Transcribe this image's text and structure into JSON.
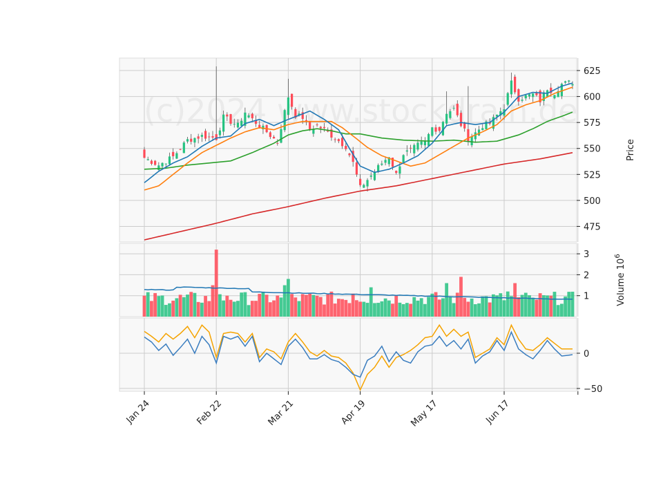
{
  "watermark": "(c)2024 www.stockdrain.de",
  "colors": {
    "up": "#26c281",
    "down": "#ff4a57",
    "ma_fast": "#1f77b4",
    "ma_mid": "#ff7f0e",
    "ma_slow": "#2ca02c",
    "ma_long": "#d62728",
    "vol_ma": "#1f77b4",
    "osc_a": "#3a7dbf",
    "osc_b": "#f5a300"
  },
  "chart_data": {
    "type": "candlestick",
    "x_tick_labels": [
      "Jan 24",
      "Feb 22",
      "Mar 21",
      "Apr 19",
      "May 17",
      "Jun 17"
    ],
    "x_tick_index": [
      0,
      20,
      40,
      60,
      80,
      100
    ],
    "n_bars": 120,
    "price_panel": {
      "ylabel": "Price",
      "ylim": [
        460,
        637
      ],
      "yticks": [
        475,
        500,
        525,
        550,
        575,
        600,
        625
      ],
      "close_anchors": [
        [
          0,
          541
        ],
        [
          4,
          534
        ],
        [
          8,
          542
        ],
        [
          12,
          558
        ],
        [
          16,
          562
        ],
        [
          20,
          560
        ],
        [
          22,
          580
        ],
        [
          26,
          572
        ],
        [
          28,
          585
        ],
        [
          30,
          578
        ],
        [
          34,
          566
        ],
        [
          37,
          556
        ],
        [
          40,
          600
        ],
        [
          42,
          582
        ],
        [
          44,
          580
        ],
        [
          46,
          568
        ],
        [
          48,
          572
        ],
        [
          50,
          568
        ],
        [
          53,
          560
        ],
        [
          56,
          552
        ],
        [
          58,
          536
        ],
        [
          60,
          512
        ],
        [
          62,
          520
        ],
        [
          65,
          532
        ],
        [
          68,
          543
        ],
        [
          70,
          525
        ],
        [
          72,
          545
        ],
        [
          74,
          548
        ],
        [
          76,
          553
        ],
        [
          78,
          556
        ],
        [
          80,
          570
        ],
        [
          82,
          568
        ],
        [
          84,
          585
        ],
        [
          86,
          588
        ],
        [
          88,
          573
        ],
        [
          90,
          560
        ],
        [
          92,
          565
        ],
        [
          94,
          572
        ],
        [
          96,
          574
        ],
        [
          98,
          582
        ],
        [
          100,
          590
        ],
        [
          102,
          613
        ],
        [
          104,
          598
        ],
        [
          106,
          600
        ],
        [
          108,
          602
        ],
        [
          110,
          596
        ],
        [
          112,
          608
        ],
        [
          114,
          604
        ],
        [
          116,
          612
        ],
        [
          119,
          614
        ]
      ],
      "ma_fast_anchors": [
        [
          0,
          517
        ],
        [
          4,
          528
        ],
        [
          8,
          536
        ],
        [
          12,
          542
        ],
        [
          16,
          552
        ],
        [
          20,
          560
        ],
        [
          24,
          562
        ],
        [
          28,
          574
        ],
        [
          32,
          578
        ],
        [
          36,
          572
        ],
        [
          40,
          578
        ],
        [
          46,
          586
        ],
        [
          50,
          578
        ],
        [
          54,
          568
        ],
        [
          57,
          550
        ],
        [
          60,
          533
        ],
        [
          64,
          527
        ],
        [
          68,
          530
        ],
        [
          72,
          536
        ],
        [
          76,
          543
        ],
        [
          80,
          555
        ],
        [
          84,
          572
        ],
        [
          88,
          575
        ],
        [
          92,
          573
        ],
        [
          96,
          575
        ],
        [
          100,
          585
        ],
        [
          104,
          600
        ],
        [
          108,
          604
        ],
        [
          112,
          603
        ],
        [
          116,
          610
        ],
        [
          119,
          613
        ]
      ],
      "ma_mid_anchors": [
        [
          0,
          510
        ],
        [
          4,
          514
        ],
        [
          8,
          525
        ],
        [
          12,
          536
        ],
        [
          16,
          546
        ],
        [
          20,
          553
        ],
        [
          24,
          560
        ],
        [
          28,
          566
        ],
        [
          32,
          570
        ],
        [
          36,
          568
        ],
        [
          40,
          573
        ],
        [
          44,
          576
        ],
        [
          48,
          576
        ],
        [
          52,
          576
        ],
        [
          55,
          570
        ],
        [
          58,
          562
        ],
        [
          62,
          551
        ],
        [
          66,
          543
        ],
        [
          70,
          538
        ],
        [
          74,
          533
        ],
        [
          78,
          536
        ],
        [
          82,
          544
        ],
        [
          86,
          552
        ],
        [
          90,
          560
        ],
        [
          94,
          566
        ],
        [
          98,
          573
        ],
        [
          102,
          586
        ],
        [
          106,
          592
        ],
        [
          110,
          596
        ],
        [
          114,
          603
        ],
        [
          119,
          609
        ]
      ],
      "ma_slow_anchors": [
        [
          0,
          530
        ],
        [
          6,
          531
        ],
        [
          12,
          534
        ],
        [
          18,
          536
        ],
        [
          24,
          538
        ],
        [
          30,
          546
        ],
        [
          36,
          555
        ],
        [
          40,
          563
        ],
        [
          44,
          567
        ],
        [
          48,
          569
        ],
        [
          52,
          567
        ],
        [
          56,
          564
        ],
        [
          60,
          564
        ],
        [
          66,
          560
        ],
        [
          72,
          558
        ],
        [
          80,
          557
        ],
        [
          86,
          558
        ],
        [
          92,
          556
        ],
        [
          98,
          557
        ],
        [
          104,
          563
        ],
        [
          108,
          569
        ],
        [
          112,
          576
        ],
        [
          116,
          581
        ],
        [
          119,
          585
        ]
      ],
      "ma_long_anchors": [
        [
          0,
          462
        ],
        [
          10,
          470
        ],
        [
          20,
          478
        ],
        [
          30,
          487
        ],
        [
          40,
          494
        ],
        [
          50,
          502
        ],
        [
          60,
          509
        ],
        [
          70,
          514
        ],
        [
          80,
          521
        ],
        [
          90,
          528
        ],
        [
          100,
          535
        ],
        [
          110,
          540
        ],
        [
          119,
          546
        ]
      ],
      "wick_spikes": [
        [
          20,
          629
        ],
        [
          40,
          617
        ],
        [
          84,
          605
        ],
        [
          90,
          610
        ],
        [
          102,
          623
        ]
      ]
    },
    "volume_panel": {
      "ylabel": "Volume  10^6",
      "ylim": [
        0,
        3.5
      ],
      "yticks": [
        1,
        2,
        3
      ],
      "spikes": [
        [
          20,
          3.2
        ],
        [
          19,
          1.5
        ],
        [
          23,
          1.0
        ],
        [
          40,
          1.8
        ],
        [
          39,
          1.5
        ],
        [
          58,
          1.1
        ],
        [
          63,
          1.4
        ],
        [
          84,
          1.6
        ],
        [
          88,
          1.9
        ],
        [
          101,
          1.2
        ],
        [
          103,
          1.6
        ],
        [
          108,
          0.9
        ],
        [
          113,
          1.0
        ]
      ],
      "ma_values_start_end": [
        1.3,
        0.82
      ]
    },
    "oscillator_panel": {
      "ylim": [
        -54,
        50
      ],
      "yticks": [
        -50,
        0
      ],
      "line_a_anchors": [
        [
          0,
          23
        ],
        [
          2,
          16
        ],
        [
          4,
          4
        ],
        [
          6,
          13
        ],
        [
          8,
          -3
        ],
        [
          10,
          8
        ],
        [
          12,
          20
        ],
        [
          14,
          0
        ],
        [
          16,
          24
        ],
        [
          18,
          12
        ],
        [
          20,
          -14
        ],
        [
          22,
          24
        ],
        [
          24,
          20
        ],
        [
          26,
          24
        ],
        [
          28,
          10
        ],
        [
          30,
          24
        ],
        [
          32,
          -12
        ],
        [
          34,
          0
        ],
        [
          36,
          -8
        ],
        [
          38,
          -16
        ],
        [
          40,
          10
        ],
        [
          42,
          20
        ],
        [
          44,
          8
        ],
        [
          46,
          -8
        ],
        [
          48,
          -8
        ],
        [
          50,
          -2
        ],
        [
          52,
          -9
        ],
        [
          54,
          -12
        ],
        [
          56,
          -20
        ],
        [
          58,
          -30
        ],
        [
          60,
          -34
        ],
        [
          62,
          -10
        ],
        [
          64,
          -4
        ],
        [
          66,
          10
        ],
        [
          68,
          -12
        ],
        [
          70,
          2
        ],
        [
          72,
          -10
        ],
        [
          74,
          -14
        ],
        [
          76,
          2
        ],
        [
          78,
          10
        ],
        [
          80,
          12
        ],
        [
          82,
          24
        ],
        [
          84,
          10
        ],
        [
          86,
          18
        ],
        [
          88,
          6
        ],
        [
          90,
          20
        ],
        [
          92,
          -14
        ],
        [
          94,
          -4
        ],
        [
          96,
          2
        ],
        [
          98,
          18
        ],
        [
          100,
          4
        ],
        [
          102,
          30
        ],
        [
          104,
          6
        ],
        [
          106,
          -2
        ],
        [
          108,
          -8
        ],
        [
          110,
          4
        ],
        [
          112,
          18
        ],
        [
          114,
          6
        ],
        [
          116,
          -4
        ],
        [
          119,
          -2
        ]
      ],
      "line_b_anchors": [
        [
          0,
          31
        ],
        [
          2,
          24
        ],
        [
          4,
          16
        ],
        [
          6,
          28
        ],
        [
          8,
          20
        ],
        [
          10,
          28
        ],
        [
          12,
          38
        ],
        [
          14,
          22
        ],
        [
          16,
          40
        ],
        [
          18,
          30
        ],
        [
          20,
          -6
        ],
        [
          22,
          28
        ],
        [
          24,
          30
        ],
        [
          26,
          28
        ],
        [
          28,
          16
        ],
        [
          30,
          28
        ],
        [
          32,
          -6
        ],
        [
          34,
          6
        ],
        [
          36,
          2
        ],
        [
          38,
          -8
        ],
        [
          40,
          16
        ],
        [
          42,
          28
        ],
        [
          44,
          16
        ],
        [
          46,
          2
        ],
        [
          48,
          -4
        ],
        [
          50,
          4
        ],
        [
          52,
          -4
        ],
        [
          54,
          -6
        ],
        [
          56,
          -14
        ],
        [
          58,
          -28
        ],
        [
          60,
          -52
        ],
        [
          62,
          -30
        ],
        [
          64,
          -20
        ],
        [
          66,
          -4
        ],
        [
          68,
          -20
        ],
        [
          70,
          -6
        ],
        [
          72,
          -2
        ],
        [
          74,
          4
        ],
        [
          76,
          12
        ],
        [
          78,
          22
        ],
        [
          80,
          24
        ],
        [
          82,
          40
        ],
        [
          84,
          24
        ],
        [
          86,
          34
        ],
        [
          88,
          24
        ],
        [
          90,
          30
        ],
        [
          92,
          -6
        ],
        [
          94,
          0
        ],
        [
          96,
          6
        ],
        [
          98,
          22
        ],
        [
          100,
          12
        ],
        [
          102,
          40
        ],
        [
          104,
          20
        ],
        [
          106,
          6
        ],
        [
          108,
          4
        ],
        [
          110,
          12
        ],
        [
          112,
          22
        ],
        [
          114,
          14
        ],
        [
          116,
          6
        ],
        [
          119,
          6
        ]
      ]
    }
  }
}
